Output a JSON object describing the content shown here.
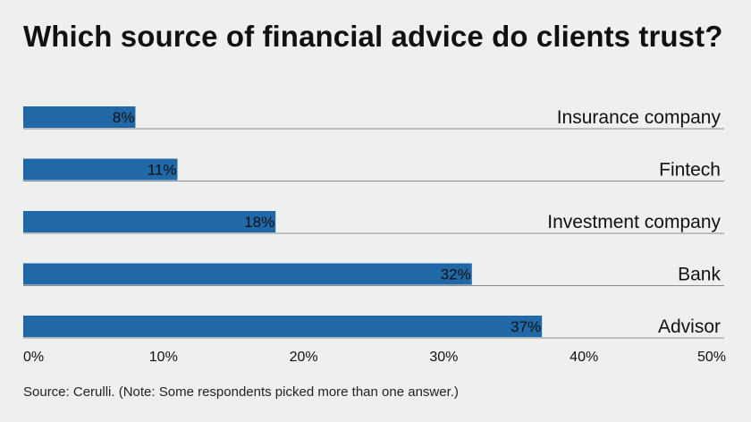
{
  "title": "Which source of financial advice do clients trust?",
  "source": "Source: Cerulli. (Note: Some respondents picked more than one answer.)",
  "chart_data": {
    "type": "bar",
    "orientation": "horizontal",
    "categories": [
      "Insurance company",
      "Fintech",
      "Investment company",
      "Bank",
      "Advisor"
    ],
    "values": [
      8,
      11,
      18,
      32,
      37
    ],
    "value_labels": [
      "8%",
      "11%",
      "18%",
      "32%",
      "37%"
    ],
    "xlim": [
      0,
      50
    ],
    "x_ticks": [
      0,
      10,
      20,
      30,
      40,
      50
    ],
    "x_tick_labels": [
      "0%",
      "10%",
      "20%",
      "30%",
      "40%",
      "50%"
    ],
    "bar_color": "#2168a7",
    "grid": false,
    "legend": "none"
  }
}
